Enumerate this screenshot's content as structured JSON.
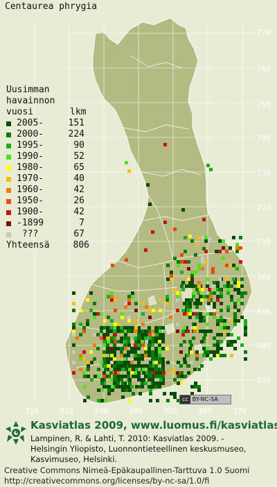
{
  "species": "Centaurea phrygia",
  "legend": {
    "header": [
      "Uusimman",
      "havainnon",
      "vuosi"
    ],
    "count_header": "lkm",
    "rows": [
      {
        "period": "2005-",
        "count": "151",
        "color": "#0a4a0a"
      },
      {
        "period": "2000-",
        "count": "224",
        "color": "#0b7a0b"
      },
      {
        "period": "1995-",
        "count": "90",
        "color": "#19b019"
      },
      {
        "period": "1990-",
        "count": "52",
        "color": "#54e020"
      },
      {
        "period": "1980-",
        "count": "65",
        "color": "#ffff10"
      },
      {
        "period": "1970-",
        "count": "40",
        "color": "#f5be0a"
      },
      {
        "period": "1960-",
        "count": "42",
        "color": "#f07a10"
      },
      {
        "period": "1950-",
        "count": "26",
        "color": "#e84a10"
      },
      {
        "period": "1900-",
        "count": "42",
        "color": "#c81414"
      },
      {
        "period": "-1899",
        "count": "7",
        "color": "#7a1010"
      },
      {
        "period": " ???",
        "count": "67",
        "color": "#c8c8c8"
      }
    ],
    "total_label": "Yhteensä",
    "total": "806"
  },
  "grid": {
    "y_ticks": [
      "770",
      "760",
      "750",
      "740",
      "730",
      "720",
      "710",
      "700",
      "690",
      "680",
      "670"
    ],
    "x_ticks": [
      "310",
      "320",
      "330",
      "340",
      "350",
      "360",
      "370"
    ]
  },
  "license_badge": "BY-NC-SA",
  "footer": {
    "title": "Kasviatlas 2009, www.luomus.fi/kasviatlas",
    "citation": [
      "Lampinen, R. & Lahti, T. 2010: Kasviatlas 2009. -",
      "Helsingin Yliopisto, Luonnontieteellinen keskusmuseo,",
      "Kasvimuseo, Helsinki."
    ],
    "license": [
      "Creative Commons Nimeä-Epäkaupallinen-Tarttuva 1.0 Suomi",
      "http://creativecommons.org/licenses/by-nc-sa/1.0/fi"
    ]
  },
  "colors": {
    "map_bg": "#e8ecd4",
    "land": "#b5b982",
    "water": "#dde3c0",
    "grid": "#ffffff",
    "footer_title": "#1d6a33"
  }
}
